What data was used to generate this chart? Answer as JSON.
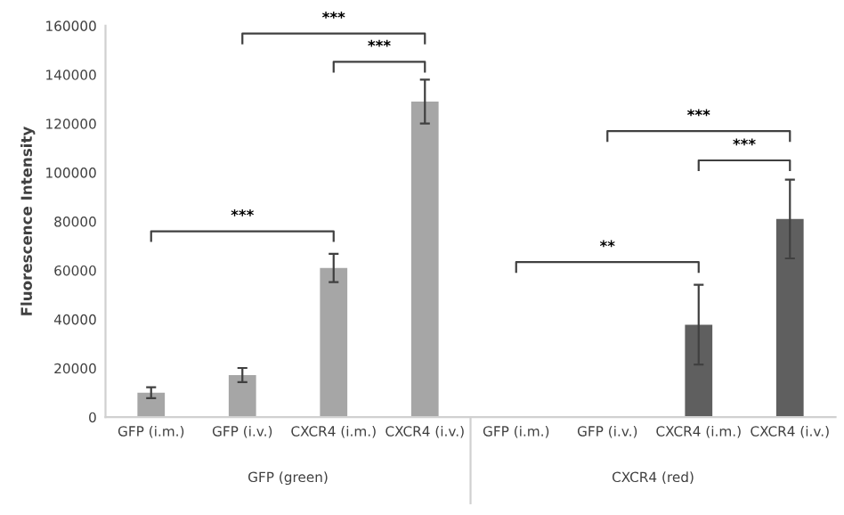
{
  "chart_data": {
    "type": "bar",
    "categories": [
      "GFP (i.m.)",
      "GFP (i.v.)",
      "CXCR4 (i.m.)",
      "CXCR4 (i.v.)",
      "GFP (i.m.)",
      "GFP (i.v.)",
      "CXCR4 (i.m.)",
      "CXCR4 (i.v.)"
    ],
    "values": [
      10000,
      17200,
      61000,
      129000,
      null,
      null,
      37800,
      81000
    ],
    "errors": [
      2200,
      2900,
      5800,
      9000,
      null,
      null,
      16300,
      16100
    ],
    "colors": [
      "#a6a6a6",
      "#a6a6a6",
      "#a6a6a6",
      "#a6a6a6",
      "#a6a6a6",
      "#a6a6a6",
      "#5f5f5f",
      "#5f5f5f"
    ],
    "ylabel": "Fluorescence Intensity",
    "ylim": [
      0,
      160000
    ],
    "yticks": [
      0,
      20000,
      40000,
      60000,
      80000,
      100000,
      120000,
      140000,
      160000
    ],
    "grid": false,
    "annotations": [
      "***",
      "***",
      "***",
      "**",
      "***",
      "***",
      "GFP (green)",
      "CXCR4 (red)"
    ]
  }
}
